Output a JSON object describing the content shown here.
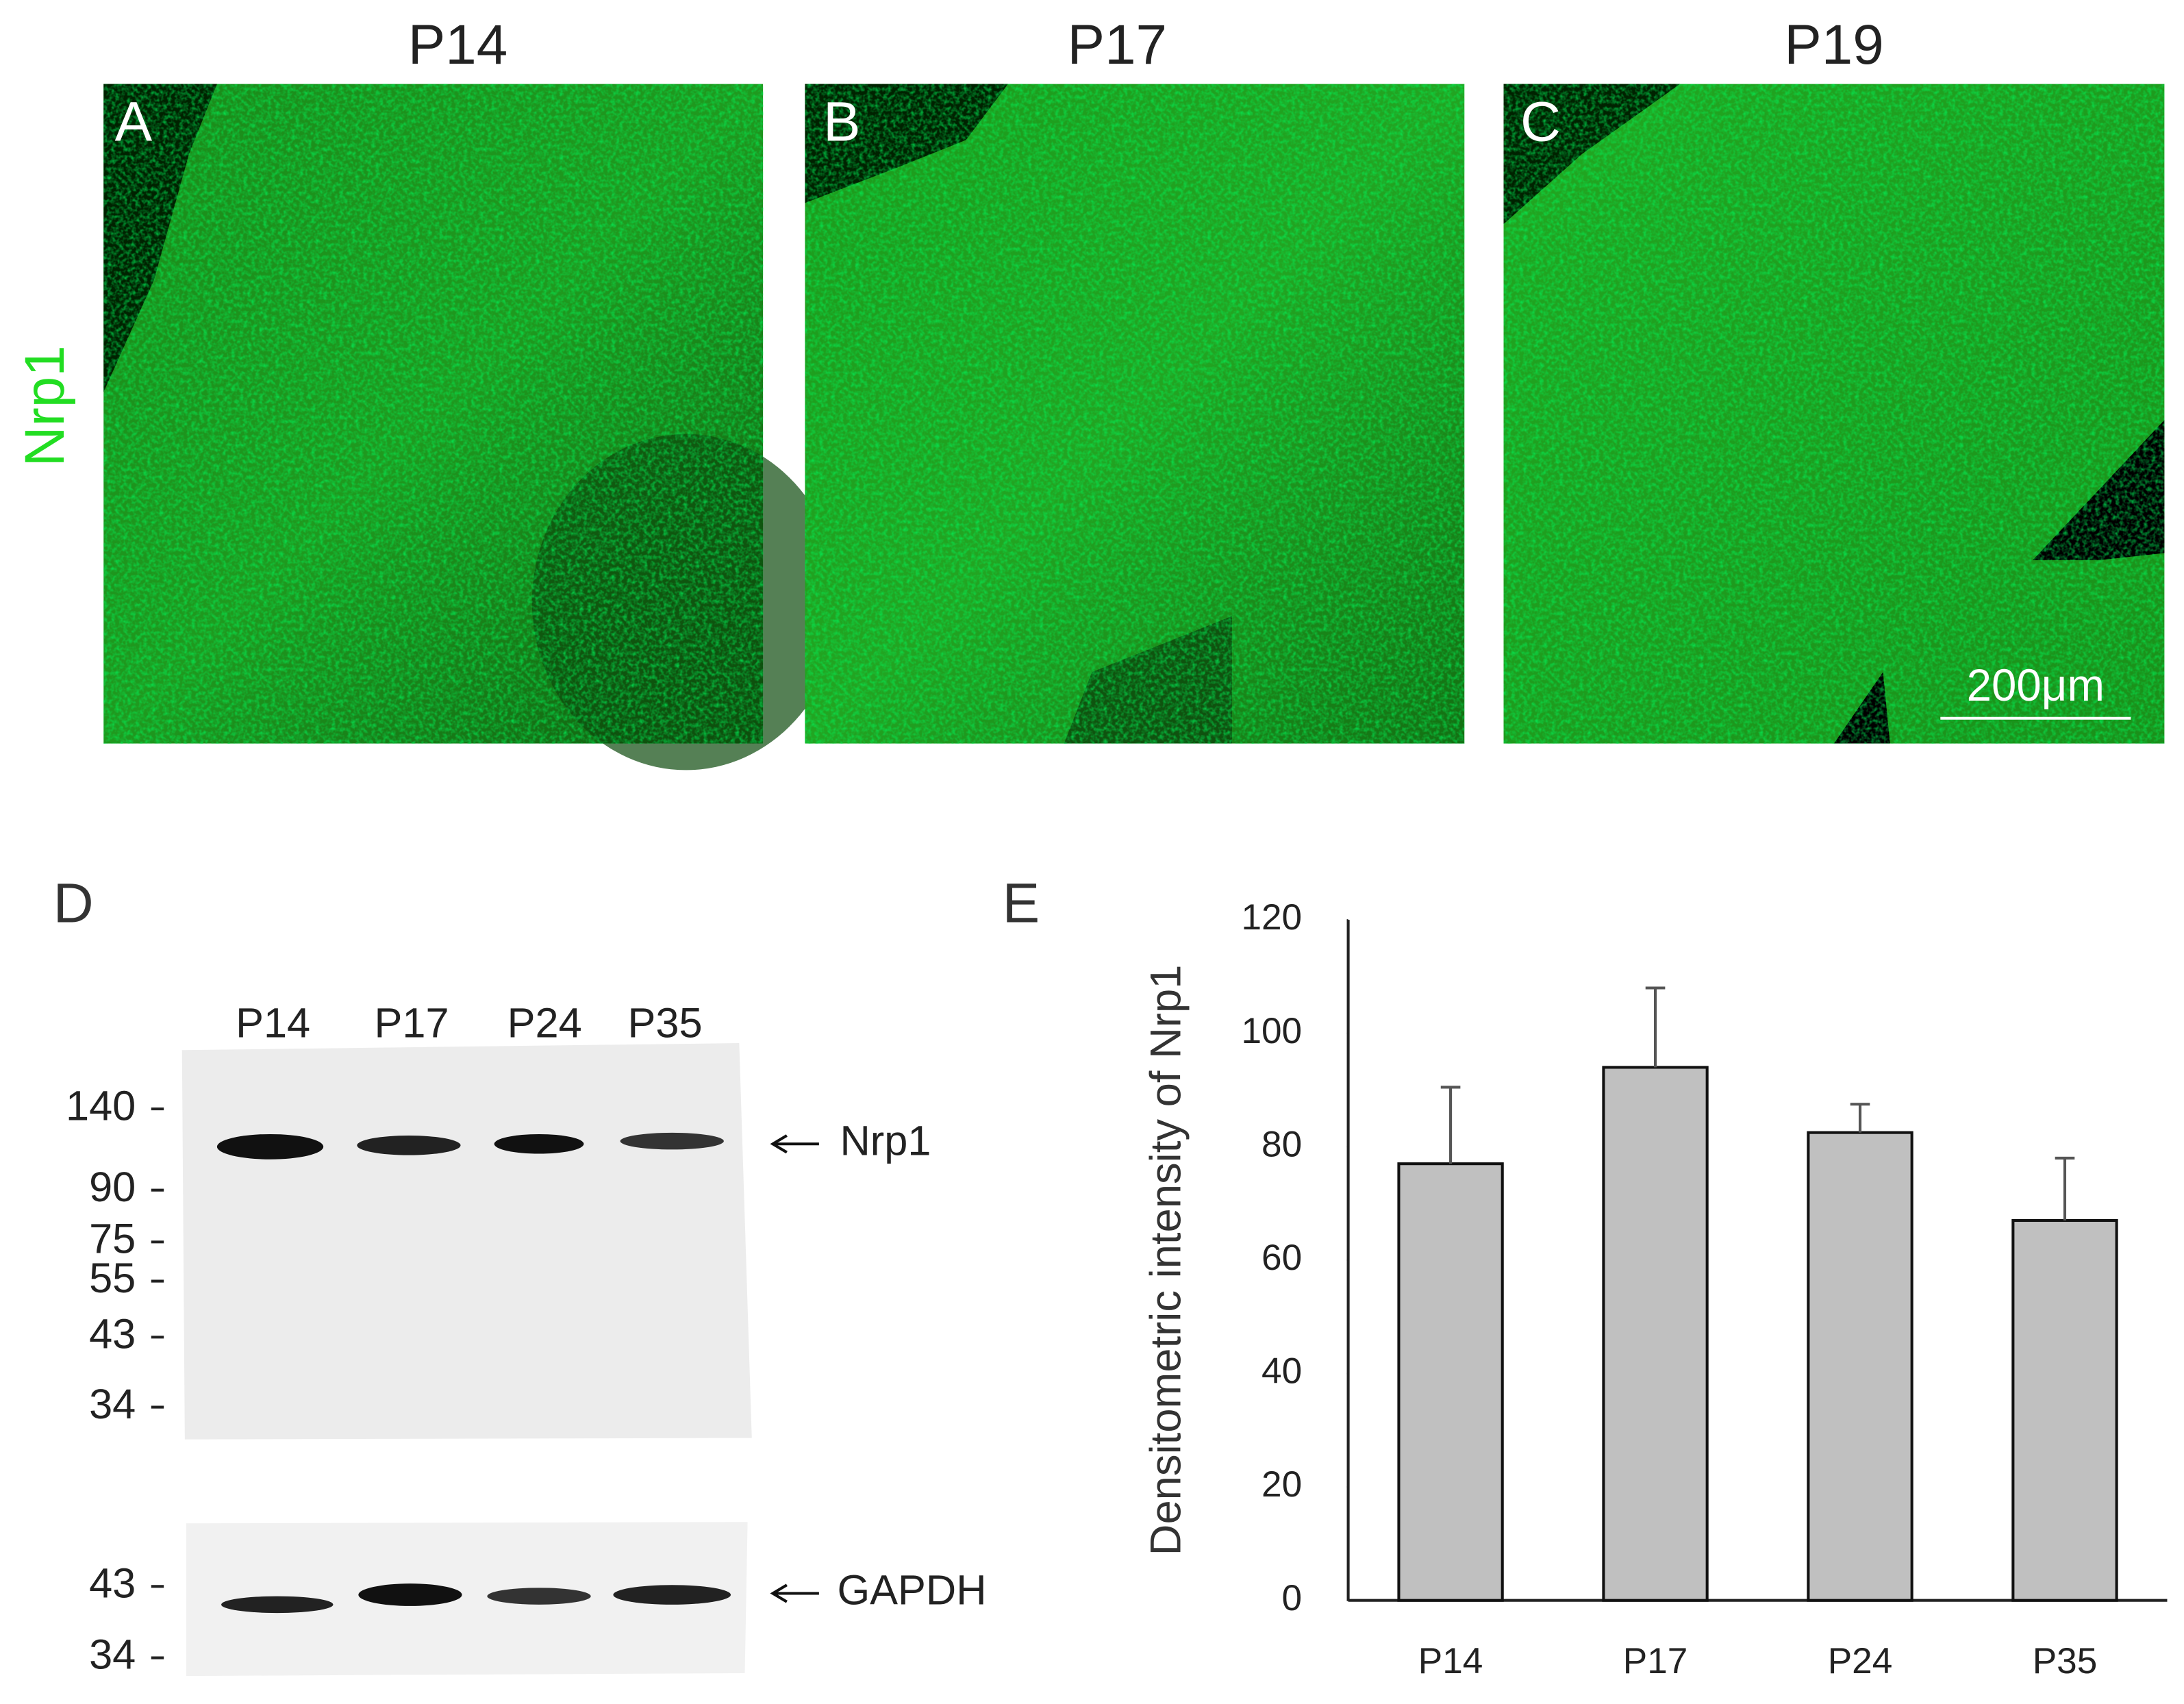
{
  "panels": [
    {
      "letter": "A",
      "title": "P14"
    },
    {
      "letter": "B",
      "title": "P17"
    },
    {
      "letter": "C",
      "title": "P19"
    }
  ],
  "row_label": "Nrp1",
  "scale_bar": "200μm",
  "blot": {
    "letter": "D",
    "lanes": [
      "P14",
      "P17",
      "P24",
      "P35"
    ],
    "upper_markers": [
      "140",
      "90",
      "75",
      "55",
      "43",
      "34"
    ],
    "lower_markers": [
      "43",
      "34"
    ],
    "upper_band": "Nrp1",
    "lower_band": "GAPDH"
  },
  "chart_data": {
    "type": "bar",
    "letter": "E",
    "y_label": "Densitometric intensity of Nrp1",
    "categories": [
      "P14",
      "P17",
      "P24",
      "P35"
    ],
    "values": [
      77,
      94,
      82.5,
      67
    ],
    "errors": [
      13.5,
      14,
      5,
      11
    ],
    "color": "#c0c0c0",
    "ylim": [
      0,
      120
    ],
    "yticks": [
      0,
      20,
      40,
      60,
      80,
      100,
      120
    ]
  }
}
